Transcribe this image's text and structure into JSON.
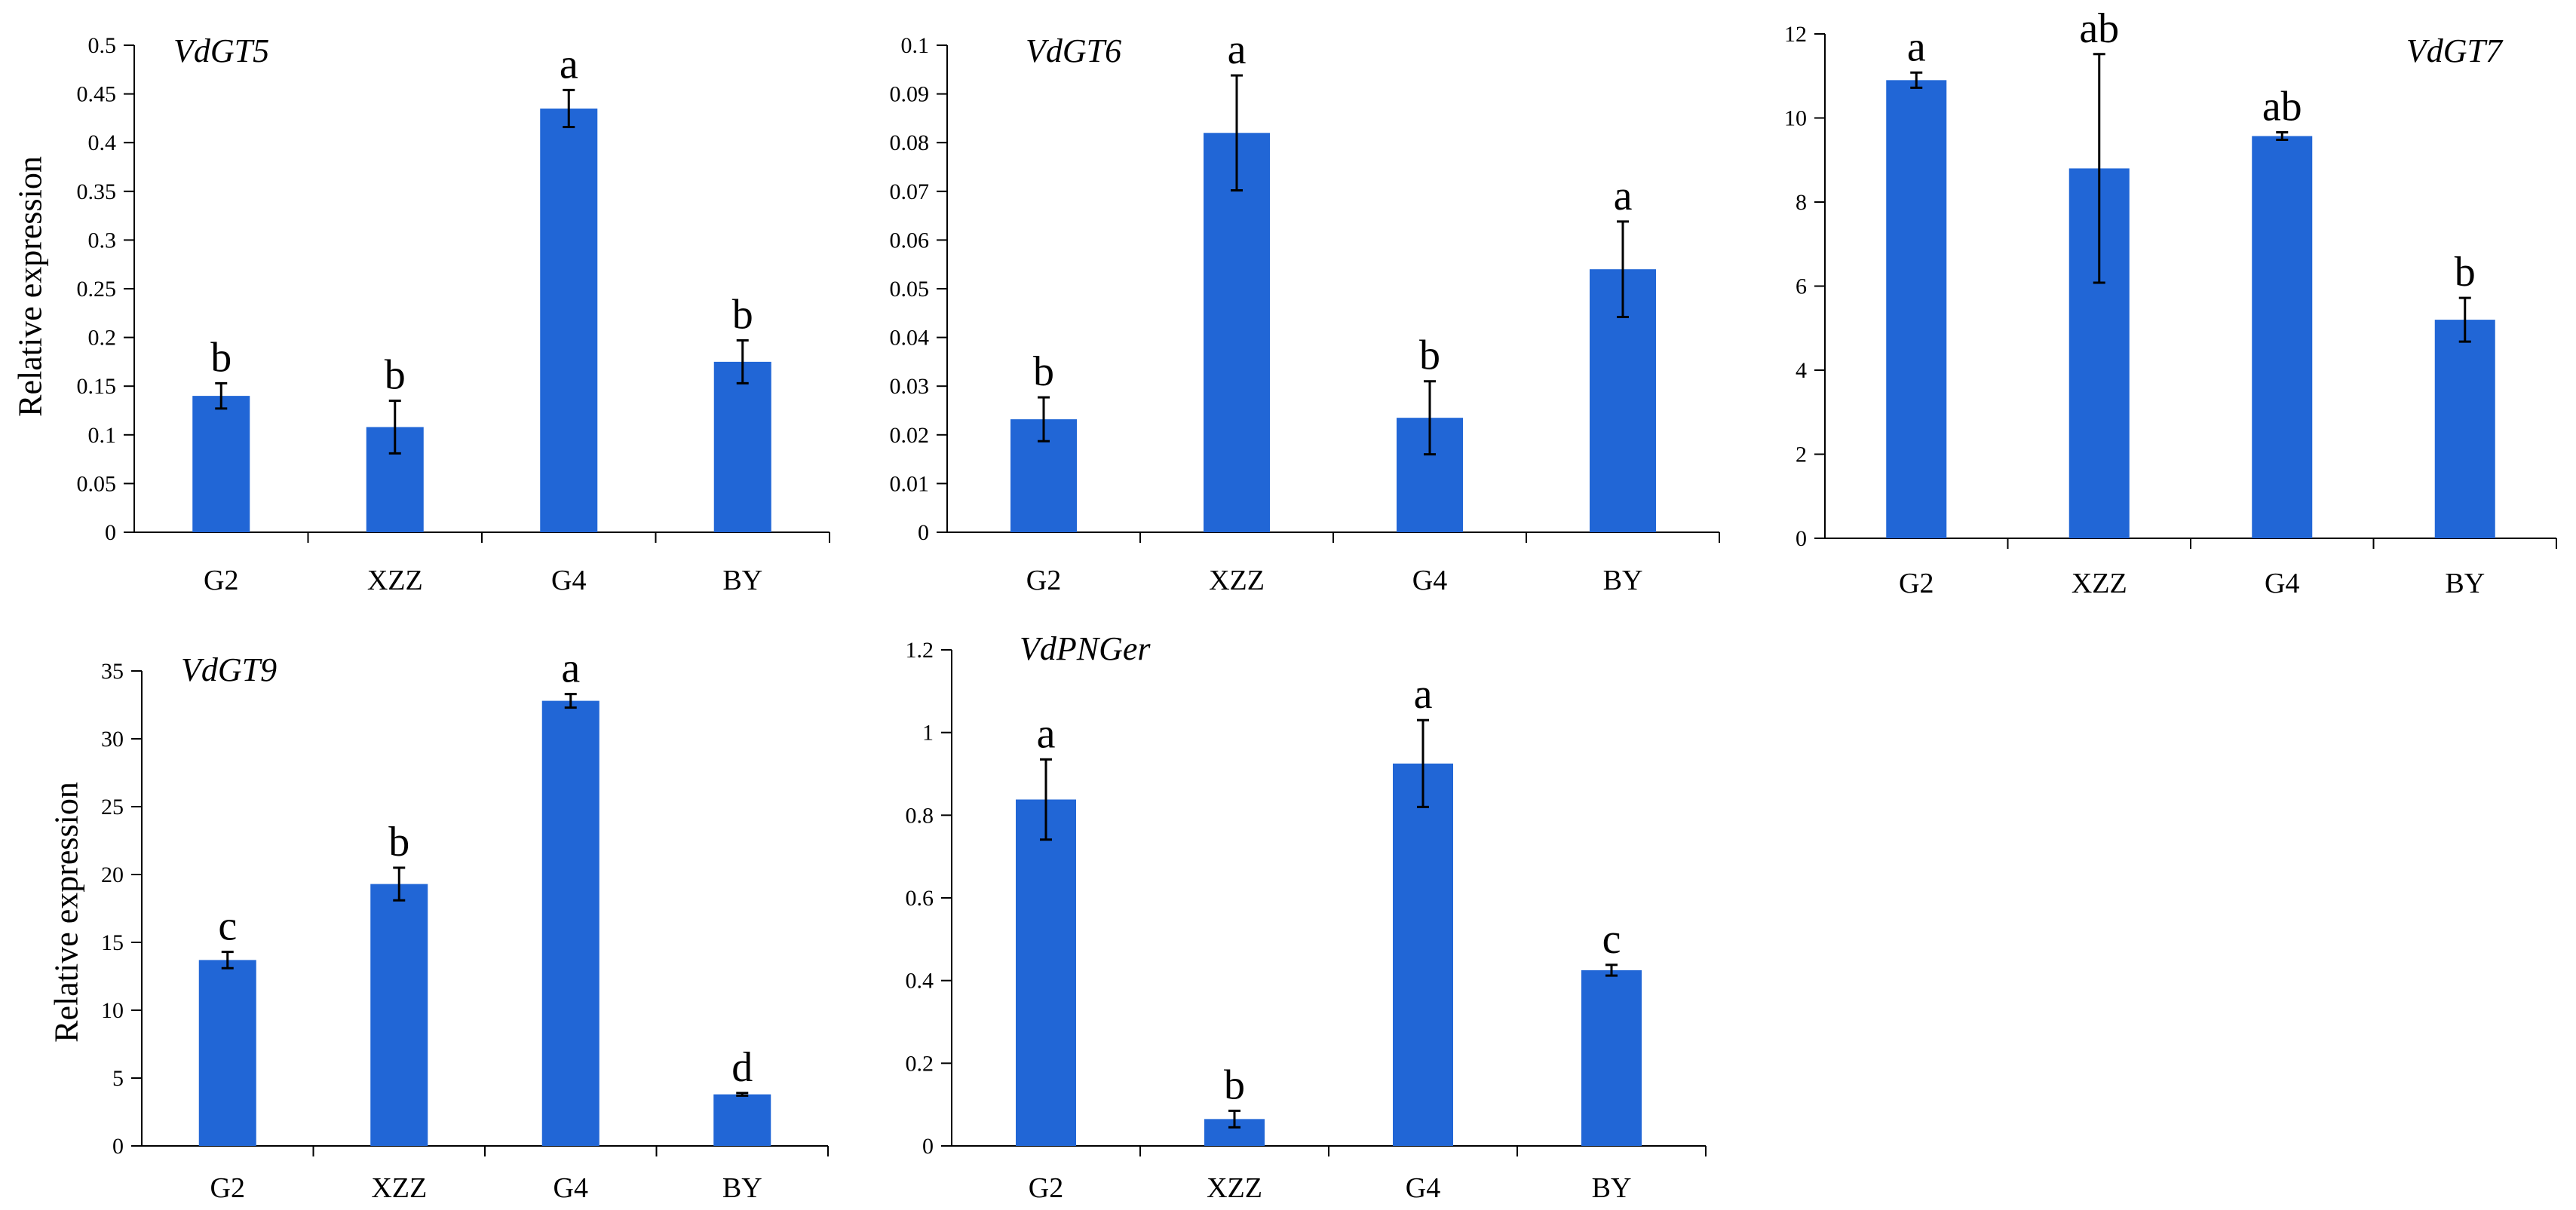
{
  "figure": {
    "colors": {
      "bar": "#2166d6",
      "axis": "#000000",
      "error_bar": "#000000",
      "background": "#ffffff"
    },
    "shared_ylabel": "Relative expression"
  },
  "chart_data": [
    {
      "type": "bar",
      "title": "VdGT5",
      "ylabel": "Relative expression",
      "xlabel": "",
      "categories": [
        "G2",
        "XZZ",
        "G4",
        "BY"
      ],
      "values": [
        0.14,
        0.108,
        0.435,
        0.175
      ],
      "errors": [
        0.013,
        0.027,
        0.019,
        0.022
      ],
      "significance": [
        "b",
        "b",
        "a",
        "b"
      ],
      "ylim": [
        0,
        0.5
      ],
      "yticks": [
        0,
        0.05,
        0.1,
        0.15,
        0.2,
        0.25,
        0.3,
        0.35,
        0.4,
        0.45,
        0.5
      ],
      "ytick_labels": [
        "0",
        "0.05",
        "0.1",
        "0.15",
        "0.2",
        "0.25",
        "0.3",
        "0.35",
        "0.4",
        "0.45",
        "0.5"
      ]
    },
    {
      "type": "bar",
      "title": "VdGT6",
      "ylabel": "",
      "xlabel": "",
      "categories": [
        "G2",
        "XZZ",
        "G4",
        "BY"
      ],
      "values": [
        0.0232,
        0.082,
        0.0235,
        0.054
      ],
      "errors": [
        0.0045,
        0.0118,
        0.0075,
        0.0098
      ],
      "significance": [
        "b",
        "a",
        "b",
        "a"
      ],
      "ylim": [
        0,
        0.1
      ],
      "yticks": [
        0,
        0.01,
        0.02,
        0.03,
        0.04,
        0.05,
        0.06,
        0.07,
        0.08,
        0.09,
        0.1
      ],
      "ytick_labels": [
        "0",
        "0.01",
        "0.02",
        "0.03",
        "0.04",
        "0.05",
        "0.06",
        "0.07",
        "0.08",
        "0.09",
        "0.1"
      ]
    },
    {
      "type": "bar",
      "title": "VdGT7",
      "ylabel": "",
      "xlabel": "",
      "categories": [
        "G2",
        "XZZ",
        "G4",
        "BY"
      ],
      "values": [
        10.9,
        8.8,
        9.57,
        5.2
      ],
      "errors": [
        0.18,
        2.72,
        0.09,
        0.52
      ],
      "significance": [
        "a",
        "ab",
        "ab",
        "b"
      ],
      "ylim": [
        0,
        12
      ],
      "yticks": [
        0,
        2,
        4,
        6,
        8,
        10,
        12
      ],
      "ytick_labels": [
        "0",
        "2",
        "4",
        "6",
        "8",
        "10",
        "12"
      ]
    },
    {
      "type": "bar",
      "title": "VdGT9",
      "ylabel": "Relative expression",
      "xlabel": "",
      "categories": [
        "G2",
        "XZZ",
        "G4",
        "BY"
      ],
      "values": [
        13.7,
        19.3,
        32.8,
        3.8
      ],
      "errors": [
        0.6,
        1.2,
        0.5,
        0.1
      ],
      "significance": [
        "c",
        "b",
        "a",
        "d"
      ],
      "ylim": [
        0,
        35
      ],
      "yticks": [
        0,
        5,
        10,
        15,
        20,
        25,
        30,
        35
      ],
      "ytick_labels": [
        "0",
        "5",
        "10",
        "15",
        "20",
        "25",
        "30",
        "35"
      ]
    },
    {
      "type": "bar",
      "title": "VdPNGer",
      "ylabel": "",
      "xlabel": "",
      "categories": [
        "G2",
        "XZZ",
        "G4",
        "BY"
      ],
      "values": [
        0.838,
        0.065,
        0.925,
        0.425
      ],
      "errors": [
        0.097,
        0.02,
        0.105,
        0.013
      ],
      "significance": [
        "a",
        "b",
        "a",
        "c"
      ],
      "ylim": [
        0,
        1.2
      ],
      "yticks": [
        0,
        0.2,
        0.4,
        0.6,
        0.8,
        1,
        1.2
      ],
      "ytick_labels": [
        "0",
        "0.2",
        "0.4",
        "0.6",
        "0.8",
        "1",
        "1.2"
      ]
    }
  ]
}
